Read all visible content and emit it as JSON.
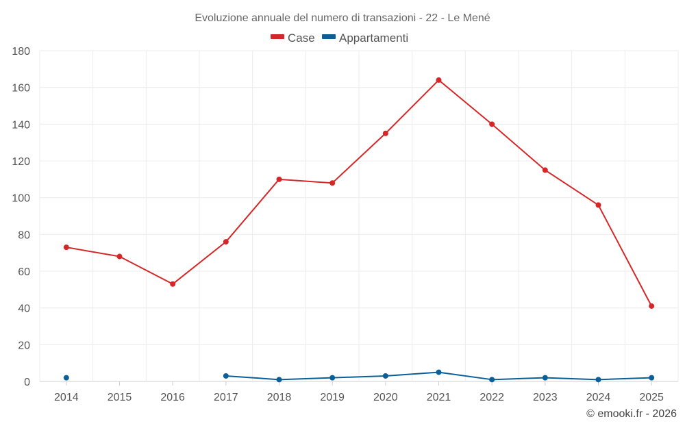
{
  "chart_data": {
    "type": "line",
    "title": "Evoluzione annuale del numero di transazioni - 22 - Le Mené",
    "xlabel": "",
    "ylabel": "",
    "categories": [
      "2014",
      "2015",
      "2016",
      "2017",
      "2018",
      "2019",
      "2020",
      "2021",
      "2022",
      "2023",
      "2024",
      "2025"
    ],
    "ylim": [
      0,
      180
    ],
    "yticks": [
      0,
      20,
      40,
      60,
      80,
      100,
      120,
      140,
      160,
      180
    ],
    "grid": true,
    "legend_position": "top-center",
    "series": [
      {
        "name": "Case",
        "color": "#d62728",
        "values": [
          73,
          68,
          53,
          76,
          110,
          108,
          135,
          164,
          140,
          115,
          96,
          41
        ]
      },
      {
        "name": "Appartamenti",
        "color": "#0b5f99",
        "values": [
          2,
          null,
          null,
          3,
          1,
          2,
          3,
          5,
          1,
          2,
          1,
          2
        ]
      }
    ]
  },
  "credit": "© emooki.fr - 2026"
}
